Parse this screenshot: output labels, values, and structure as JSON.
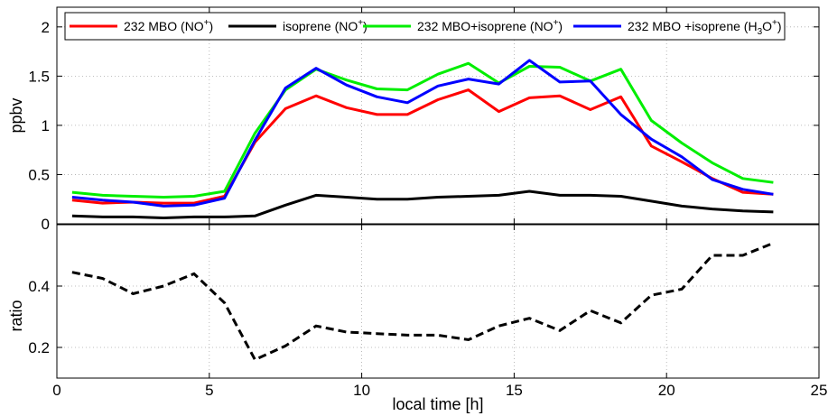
{
  "chart_data": [
    {
      "type": "line",
      "x": [
        0.5,
        1.5,
        2.5,
        3.5,
        4.5,
        5.5,
        6.5,
        7.5,
        8.5,
        9.5,
        10.5,
        11.5,
        12.5,
        13.5,
        14.5,
        15.5,
        16.5,
        17.5,
        18.5,
        19.5,
        20.5,
        21.5,
        22.5,
        23.5
      ],
      "series": [
        {
          "name": "232 MBO (NO+)",
          "color": "#ff0000",
          "values": [
            0.24,
            0.21,
            0.22,
            0.21,
            0.21,
            0.28,
            0.83,
            1.17,
            1.3,
            1.18,
            1.11,
            1.11,
            1.26,
            1.36,
            1.14,
            1.28,
            1.3,
            1.16,
            1.29,
            0.79,
            0.63,
            0.46,
            0.32,
            0.3
          ]
        },
        {
          "name": "isoprene (NO+)",
          "color": "#000000",
          "values": [
            0.08,
            0.07,
            0.07,
            0.06,
            0.07,
            0.07,
            0.08,
            0.19,
            0.29,
            0.27,
            0.25,
            0.25,
            0.27,
            0.28,
            0.29,
            0.33,
            0.29,
            0.29,
            0.28,
            0.23,
            0.18,
            0.15,
            0.13,
            0.12
          ]
        },
        {
          "name": "232 MBO+isoprene (NO+)",
          "color": "#00ee00",
          "values": [
            0.32,
            0.29,
            0.28,
            0.27,
            0.28,
            0.33,
            0.92,
            1.36,
            1.57,
            1.46,
            1.37,
            1.36,
            1.52,
            1.63,
            1.43,
            1.6,
            1.59,
            1.45,
            1.57,
            1.05,
            0.82,
            0.62,
            0.46,
            0.42
          ]
        },
        {
          "name": "232 MBO +isoprene (H3O+)",
          "color": "#0000ff",
          "values": [
            0.27,
            0.24,
            0.22,
            0.18,
            0.19,
            0.26,
            0.85,
            1.38,
            1.58,
            1.41,
            1.29,
            1.23,
            1.4,
            1.47,
            1.42,
            1.66,
            1.44,
            1.45,
            1.11,
            0.86,
            0.68,
            0.45,
            0.35,
            0.3
          ]
        }
      ],
      "legend": [
        {
          "base": "232 MBO (NO",
          "sup": "+",
          "tail": ")"
        },
        {
          "base": "isoprene (NO",
          "sup": "+",
          "tail": ")"
        },
        {
          "base": "232 MBO+isoprene (NO",
          "sup": "+",
          "tail": ")"
        },
        {
          "base": "232 MBO +isoprene (H",
          "sub": "3",
          "mid": "O",
          "sup": "+",
          "tail": ")"
        }
      ],
      "ylabel": "ppbv",
      "xlim": [
        0,
        25
      ],
      "ylim": [
        0,
        2.2
      ],
      "yticks": [
        "0",
        "0.5",
        "1",
        "1.5",
        "2"
      ],
      "yticks_values": [
        0,
        0.5,
        1,
        1.5,
        2
      ],
      "grid": true,
      "legend_position": "top"
    },
    {
      "type": "line",
      "x": [
        0.5,
        1.5,
        2.5,
        3.5,
        4.5,
        5.5,
        6.5,
        7.5,
        8.5,
        9.5,
        10.5,
        11.5,
        12.5,
        13.5,
        14.5,
        15.5,
        16.5,
        17.5,
        18.5,
        19.5,
        20.5,
        21.5,
        22.5,
        23.5
      ],
      "series": [
        {
          "color": "#000000",
          "linestyle": "dashed",
          "values": [
            0.445,
            0.425,
            0.375,
            0.4,
            0.44,
            0.345,
            0.16,
            0.205,
            0.27,
            0.25,
            0.245,
            0.24,
            0.24,
            0.225,
            0.27,
            0.295,
            0.255,
            0.32,
            0.28,
            0.37,
            0.39,
            0.5,
            0.5,
            0.54
          ]
        }
      ],
      "xlabel": "local time [h]",
      "ylabel": "ratio",
      "xlim": [
        0,
        25
      ],
      "ylim": [
        0.1,
        0.6
      ],
      "xticks": [
        "0",
        "5",
        "10",
        "15",
        "20",
        "25"
      ],
      "xticks_values": [
        0,
        5,
        10,
        15,
        20,
        25
      ],
      "yticks": [
        "0.2",
        "0.4"
      ],
      "yticks_values": [
        0.2,
        0.4
      ],
      "grid": true
    }
  ]
}
